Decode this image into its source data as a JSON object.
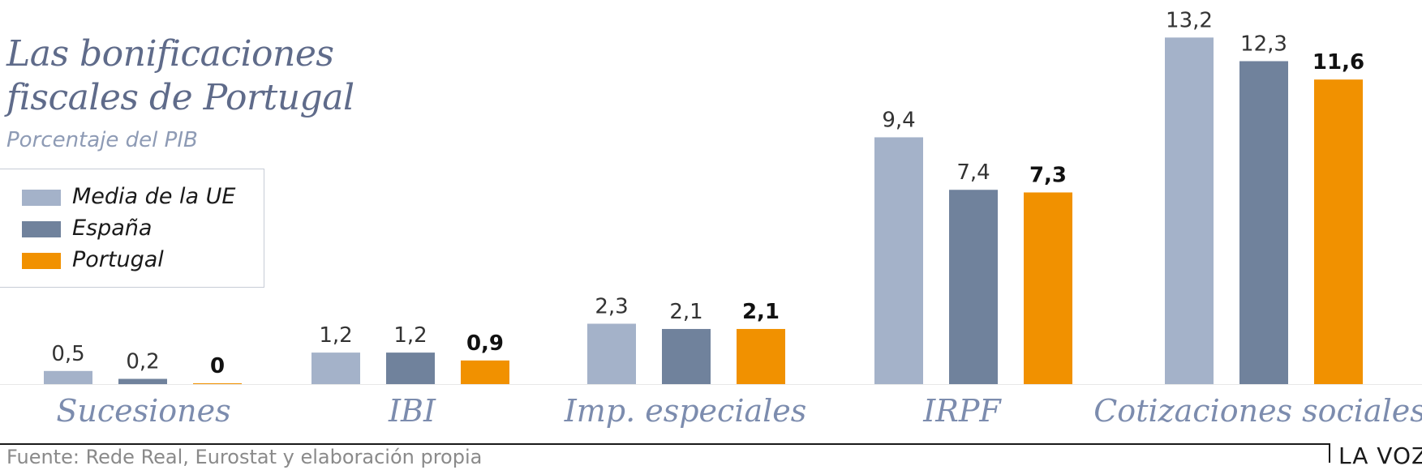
{
  "header": {
    "title_line1": "Las bonificaciones",
    "title_line2": "fiscales de Portugal",
    "subtitle": "Porcentaje del PIB"
  },
  "legend": {
    "items": [
      {
        "label": "Media de la UE",
        "color": "#a4b2c9"
      },
      {
        "label": "España",
        "color": "#70829c"
      },
      {
        "label": "Portugal",
        "color": "#f19100"
      }
    ]
  },
  "chart_data": {
    "type": "bar",
    "title": "Las bonificaciones fiscales de Portugal",
    "subtitle": "Porcentaje del PIB",
    "categories": [
      "Sucesiones",
      "IBI",
      "Imp. especiales",
      "IRPF",
      "Cotizaciones sociales"
    ],
    "series": [
      {
        "name": "Media de la UE",
        "values": [
          0.5,
          1.2,
          2.3,
          9.4,
          13.2
        ],
        "labels": [
          "0,5",
          "1,2",
          "2,3",
          "9,4",
          "13,2"
        ],
        "color": "#a4b2c9"
      },
      {
        "name": "España",
        "values": [
          0.2,
          1.2,
          2.1,
          7.4,
          12.3
        ],
        "labels": [
          "0,2",
          "1,2",
          "2,1",
          "7,4",
          "12,3"
        ],
        "color": "#70829c"
      },
      {
        "name": "Portugal",
        "values": [
          0,
          0.9,
          2.1,
          7.3,
          11.6
        ],
        "labels": [
          "0",
          "0,9",
          "2,1",
          "7,3",
          "11,6"
        ],
        "color": "#f19100",
        "bold_labels": true
      }
    ],
    "ylim": [
      0,
      13.2
    ],
    "grid": false,
    "legend_position": "left"
  },
  "footer": {
    "source": "Fuente: Rede Real, Eurostat y elaboración propia",
    "brand": "LA VOZ"
  }
}
